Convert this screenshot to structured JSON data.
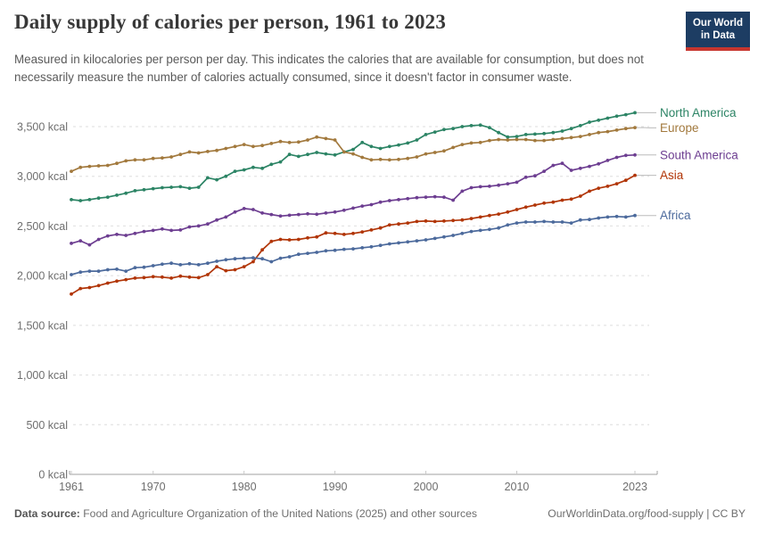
{
  "header": {
    "title": "Daily supply of calories per person, 1961 to 2023",
    "subtitle": "Measured in kilocalories per person per day. This indicates the calories that are available for consumption, but does not necessarily measure the number of calories actually consumed, since it doesn't factor in consumer waste.",
    "logo": {
      "line1": "Our World",
      "line2": "in Data",
      "bg_color": "#1d3d63",
      "accent_color": "#c7362f"
    }
  },
  "footer": {
    "datasource_label": "Data source:",
    "datasource_text": "Food and Agriculture Organization of the United Nations (2025) and other sources",
    "credit": "OurWorldinData.org/food-supply | CC BY"
  },
  "chart_data": {
    "type": "line",
    "title": "Daily supply of calories per person, 1961 to 2023",
    "unit": "kcal",
    "xlabel": "",
    "ylabel": "",
    "x_range": [
      1961,
      2023
    ],
    "x_ticks": [
      1961,
      1970,
      1980,
      1990,
      2000,
      2010,
      2023
    ],
    "y_ticks": [
      0,
      500,
      1000,
      1500,
      2000,
      2500,
      3000,
      3500
    ],
    "y_tick_suffix": " kcal",
    "ylim": [
      0,
      3700
    ],
    "grid": "horizontal-dashed",
    "legend_position": "right-line-end-labels",
    "marker": "point",
    "axis_text_color": "#6e6e6e",
    "grid_color": "#dedede",
    "series": [
      {
        "name": "North America",
        "color": "#2c8465",
        "values": [
          2765,
          2755,
          2765,
          2780,
          2790,
          2810,
          2830,
          2855,
          2865,
          2875,
          2885,
          2890,
          2895,
          2880,
          2890,
          2985,
          2965,
          3000,
          3050,
          3065,
          3090,
          3080,
          3120,
          3145,
          3220,
          3200,
          3220,
          3240,
          3225,
          3215,
          3245,
          3270,
          3340,
          3300,
          3280,
          3300,
          3315,
          3335,
          3365,
          3420,
          3445,
          3470,
          3480,
          3500,
          3510,
          3515,
          3490,
          3440,
          3395,
          3400,
          3420,
          3425,
          3430,
          3440,
          3455,
          3480,
          3510,
          3545,
          3565,
          3585,
          3605,
          3620,
          3640
        ]
      },
      {
        "name": "Europe",
        "color": "#a2793d",
        "values": [
          3050,
          3090,
          3100,
          3105,
          3110,
          3130,
          3155,
          3165,
          3165,
          3180,
          3185,
          3195,
          3220,
          3245,
          3235,
          3250,
          3260,
          3280,
          3300,
          3320,
          3300,
          3310,
          3330,
          3350,
          3340,
          3345,
          3365,
          3395,
          3380,
          3365,
          3245,
          3225,
          3190,
          3165,
          3170,
          3165,
          3170,
          3180,
          3195,
          3225,
          3240,
          3255,
          3290,
          3320,
          3335,
          3340,
          3360,
          3370,
          3365,
          3370,
          3370,
          3360,
          3360,
          3370,
          3380,
          3390,
          3400,
          3420,
          3440,
          3450,
          3465,
          3480,
          3490
        ]
      },
      {
        "name": "South America",
        "color": "#6d3e91",
        "values": [
          2325,
          2350,
          2310,
          2365,
          2400,
          2415,
          2405,
          2425,
          2445,
          2455,
          2470,
          2455,
          2460,
          2490,
          2500,
          2520,
          2560,
          2590,
          2640,
          2675,
          2665,
          2630,
          2615,
          2600,
          2608,
          2615,
          2622,
          2618,
          2630,
          2640,
          2658,
          2680,
          2700,
          2715,
          2740,
          2755,
          2765,
          2775,
          2785,
          2790,
          2795,
          2790,
          2760,
          2850,
          2885,
          2895,
          2900,
          2910,
          2925,
          2940,
          2990,
          3005,
          3050,
          3110,
          3130,
          3060,
          3080,
          3100,
          3125,
          3160,
          3190,
          3210,
          3215
        ]
      },
      {
        "name": "Asia",
        "color": "#b13507",
        "values": [
          1815,
          1870,
          1880,
          1900,
          1925,
          1945,
          1960,
          1975,
          1980,
          1990,
          1985,
          1975,
          1995,
          1985,
          1980,
          2010,
          2090,
          2050,
          2060,
          2090,
          2140,
          2260,
          2345,
          2365,
          2360,
          2365,
          2380,
          2390,
          2430,
          2425,
          2415,
          2425,
          2440,
          2460,
          2480,
          2510,
          2520,
          2530,
          2545,
          2550,
          2545,
          2550,
          2555,
          2560,
          2575,
          2590,
          2605,
          2620,
          2640,
          2665,
          2690,
          2710,
          2730,
          2740,
          2760,
          2770,
          2800,
          2850,
          2880,
          2900,
          2925,
          2960,
          3010
        ]
      },
      {
        "name": "Africa",
        "color": "#4c6a9c",
        "values": [
          2010,
          2035,
          2045,
          2045,
          2060,
          2065,
          2045,
          2080,
          2085,
          2100,
          2115,
          2125,
          2110,
          2120,
          2110,
          2125,
          2145,
          2160,
          2170,
          2175,
          2180,
          2170,
          2140,
          2175,
          2190,
          2215,
          2225,
          2235,
          2250,
          2255,
          2265,
          2270,
          2280,
          2290,
          2305,
          2320,
          2330,
          2340,
          2350,
          2360,
          2375,
          2390,
          2405,
          2425,
          2445,
          2455,
          2465,
          2480,
          2510,
          2530,
          2540,
          2540,
          2545,
          2540,
          2540,
          2530,
          2560,
          2565,
          2580,
          2590,
          2595,
          2590,
          2605
        ]
      }
    ]
  }
}
